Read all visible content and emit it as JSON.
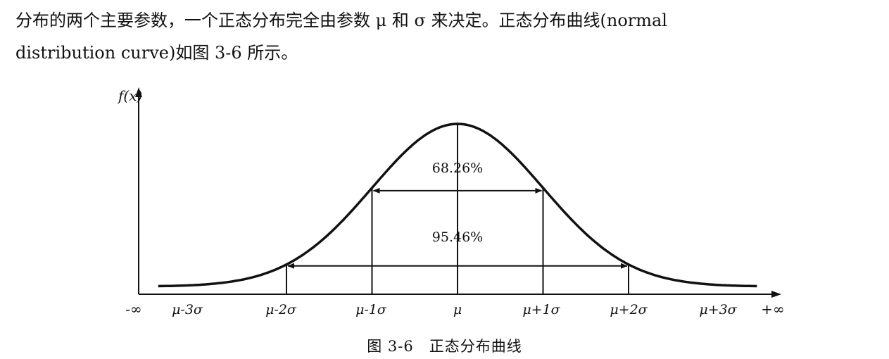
{
  "paragraph": {
    "line1": "分布的两个主要参数，一个正态分布完全由参数 μ 和 σ 来决定。正态分布曲线(normal",
    "line2": "distribution curve)如图 3-6 所示。"
  },
  "figure": {
    "caption_number": "图 3-6",
    "caption_title": "正态分布曲线"
  },
  "chart_data": {
    "type": "line",
    "title": "",
    "ylabel": "f(x)",
    "xlabel": "",
    "x_ticks": [
      "-∞",
      "μ-3σ",
      "μ-2σ",
      "μ-1σ",
      "μ",
      "μ+1σ",
      "μ+2σ",
      "μ+3σ",
      "+∞"
    ],
    "curve": "normal distribution",
    "xlim_sigma": [
      -3.5,
      3.5
    ],
    "annotations": [
      {
        "label": "68.26%",
        "range_sigma": [
          -1,
          1
        ]
      },
      {
        "label": "95.46%",
        "range_sigma": [
          -2,
          2
        ]
      }
    ],
    "vertical_lines_sigma": [
      -2,
      -1,
      0,
      1,
      2
    ],
    "grid": false
  }
}
